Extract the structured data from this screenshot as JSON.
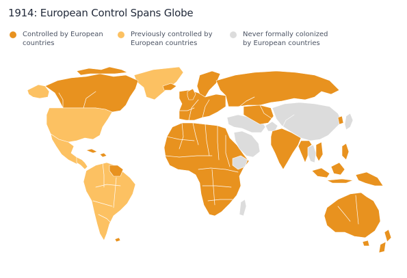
{
  "title": "1914: European Control Spans Globe",
  "legend": [
    {
      "label": "Controlled by European countries",
      "color": "#e8921f",
      "key": "controlled"
    },
    {
      "label": "Previously controlled by European countries",
      "color": "#fcc162",
      "key": "previous"
    },
    {
      "label": "Never formally colonized by European countries",
      "color": "#dcdcdc",
      "key": "never"
    }
  ]
}
